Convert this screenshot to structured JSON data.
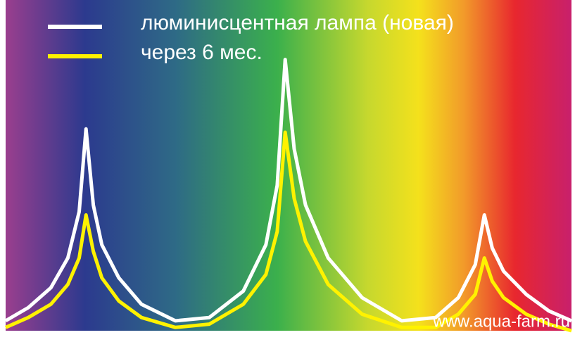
{
  "chart_data": {
    "type": "line",
    "watermark": "www.aqua-farm.ru",
    "x": [
      0,
      4,
      8,
      11,
      13,
      14.2,
      15.5,
      17,
      20,
      24,
      30,
      36,
      42,
      46,
      48,
      49.4,
      51,
      53,
      57,
      63,
      70,
      76,
      80,
      83,
      84.6,
      86,
      88,
      92,
      96,
      100
    ],
    "xlim": [
      0,
      100
    ],
    "ylim": [
      0,
      100
    ],
    "series": [
      {
        "name": "люминисцентная лампа (новая)",
        "color": "#ffffff",
        "values": [
          3,
          7,
          13,
          22,
          36,
          61,
          38,
          26,
          16,
          8,
          3,
          4,
          12,
          26,
          44,
          82,
          55,
          38,
          22,
          10,
          3,
          4,
          10,
          20,
          35,
          25,
          18,
          11,
          6,
          3
        ]
      },
      {
        "name": "через 6 мес.",
        "color": "#fff200",
        "values": [
          1,
          4,
          8,
          14,
          22,
          35,
          24,
          16,
          9,
          4,
          1,
          2,
          8,
          17,
          30,
          60,
          40,
          27,
          14,
          5,
          1,
          1,
          5,
          11,
          22,
          15,
          10,
          5,
          2,
          0
        ]
      }
    ]
  }
}
